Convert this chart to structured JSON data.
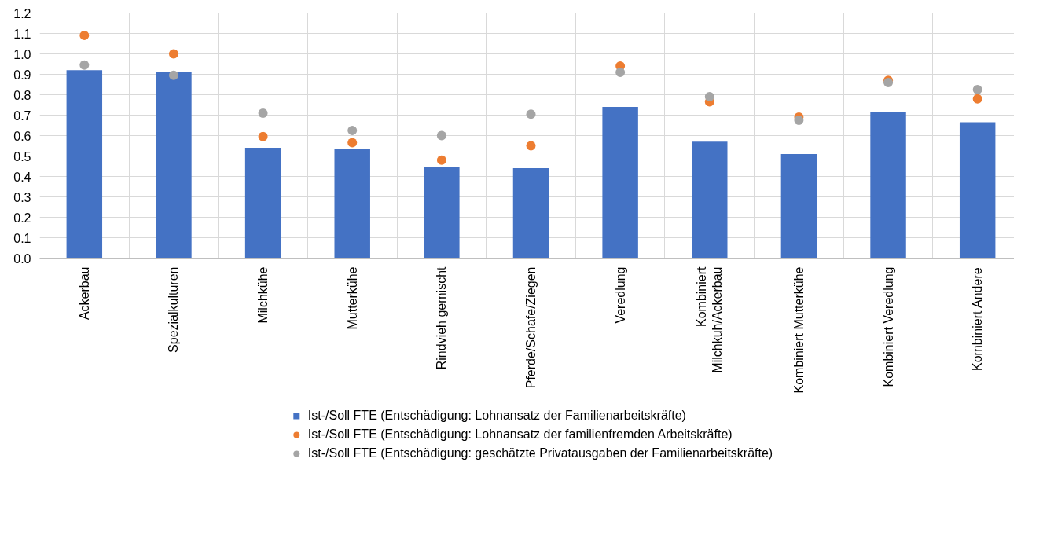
{
  "chart_data": {
    "type": "bar",
    "categories": [
      "Ackerbau",
      "Spezialkulturen",
      "Milchkühe",
      "Mutterkühe",
      "Rindvieh gemischt",
      "Pferde/Schafe/Ziegen",
      "Veredlung",
      "Kombiniert Milchkuh/Ackerbau",
      "Kombiniert Mutterkühe",
      "Kombiniert Veredlung",
      "Kombiniert Andere"
    ],
    "series": [
      {
        "name": "Ist-/Soll FTE (Entschädigung: Lohnansatz der Familienarbeitskräfte)",
        "color": "#4472c4",
        "type": "bar",
        "values": [
          0.92,
          0.91,
          0.54,
          0.535,
          0.445,
          0.44,
          0.74,
          0.57,
          0.51,
          0.715,
          0.665
        ]
      },
      {
        "name": "Ist-/Soll FTE (Entschädigung: Lohnansatz der familienfremden Arbeitskräfte)",
        "color": "#ed7d31",
        "type": "scatter",
        "x": [
          "Ackerbau",
          "Spezialkulturen",
          "Milchkühe",
          "Mutterkühe",
          "Rindvieh gemischt",
          "Pferde/Schafe/Ziegen",
          "Veredlung",
          "Kombiniert Milchkuh/Ackerbau",
          "Kombiniert Mutterkühe",
          "Kombiniert Veredlung",
          "Kombiniert Andere"
        ],
        "values": [
          1.09,
          1.0,
          0.595,
          0.565,
          0.48,
          0.55,
          0.94,
          0.765,
          0.69,
          0.87,
          0.78
        ]
      },
      {
        "name": "Ist-/Soll FTE (Entschädigung: geschätzte Privatausgaben der Familienarbeitskräfte)",
        "color": "#a5a5a5",
        "type": "scatter",
        "x": [
          "Ackerbau",
          "Spezialkulturen",
          "Milchkühe",
          "Mutterkühe",
          "Rindvieh gemischt",
          "Pferde/Schafe/Ziegen",
          "Veredlung",
          "Kombiniert Milchkuh/Ackerbau",
          "Kombiniert Mutterkühe",
          "Kombiniert Veredlung",
          "Kombiniert Andere"
        ],
        "values": [
          0.945,
          0.895,
          0.71,
          0.625,
          0.6,
          0.705,
          0.91,
          0.79,
          0.675,
          0.86,
          0.825
        ]
      }
    ],
    "ylim": [
      0,
      1.2
    ],
    "yticks": [
      {
        "value": 0,
        "label": "0.0"
      },
      {
        "value": 0.1,
        "label": "0.1"
      },
      {
        "value": 0.2,
        "label": "0.2"
      },
      {
        "value": 0.3,
        "label": "0.3"
      },
      {
        "value": 0.4,
        "label": "0.4"
      },
      {
        "value": 0.5,
        "label": "0.5"
      },
      {
        "value": 0.6,
        "label": "0.6"
      },
      {
        "value": 0.7,
        "label": "0.7"
      },
      {
        "value": 0.8,
        "label": "0.8"
      },
      {
        "value": 0.9,
        "label": "0.9"
      },
      {
        "value": 1.0,
        "label": "1.0"
      },
      {
        "value": 1.1,
        "label": "1.1"
      },
      {
        "value": 1.2,
        "label": "1.2"
      }
    ],
    "grid": true,
    "legend": "bottom",
    "marker": "circle"
  }
}
